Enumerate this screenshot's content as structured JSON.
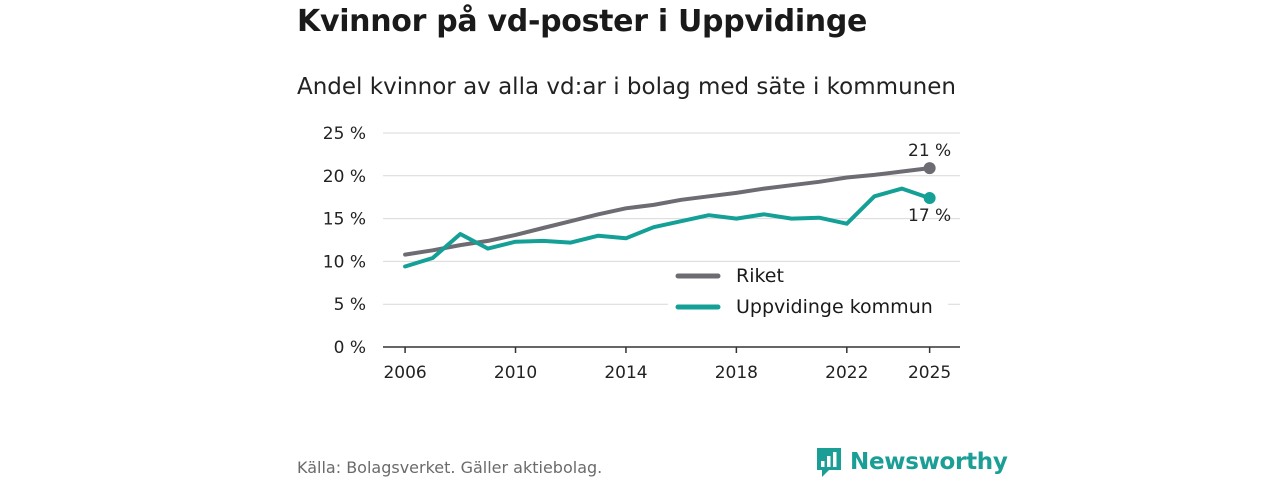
{
  "title": "Kvinnor på vd-poster i Uppvidinge",
  "subtitle": "Andel kvinnor av alla vd:ar i bolag med säte i kommunen",
  "source": "Källa: Bolagsverket. Gäller aktiebolag.",
  "brand": "Newsworthy",
  "colors": {
    "riket": "#6e6c73",
    "kommun": "#14a096",
    "grid": "#d9d9d9",
    "axis": "#333333"
  },
  "chart_data": {
    "type": "line",
    "title": "Kvinnor på vd-poster i Uppvidinge",
    "subtitle": "Andel kvinnor av alla vd:ar i bolag med säte i kommunen",
    "xlabel": "",
    "ylabel": "",
    "ylim": [
      0,
      25
    ],
    "yticks": [
      0,
      5,
      10,
      15,
      20,
      25
    ],
    "ytick_labels": [
      "0 %",
      "5 %",
      "10 %",
      "15 %",
      "20 %",
      "25 %"
    ],
    "xticks": [
      2006,
      2010,
      2014,
      2018,
      2022,
      2025
    ],
    "xtick_labels": [
      "2006",
      "2010",
      "2014",
      "2018",
      "2022",
      "2025"
    ],
    "x": [
      2006,
      2007,
      2008,
      2009,
      2010,
      2011,
      2012,
      2013,
      2014,
      2015,
      2016,
      2017,
      2018,
      2019,
      2020,
      2021,
      2022,
      2023,
      2024,
      2025
    ],
    "series": [
      {
        "name": "Riket",
        "color": "#6e6c73",
        "values": [
          10.8,
          11.3,
          11.9,
          12.4,
          13.1,
          13.9,
          14.7,
          15.5,
          16.2,
          16.6,
          17.2,
          17.6,
          18.0,
          18.5,
          18.9,
          19.3,
          19.8,
          20.1,
          20.5,
          20.9
        ],
        "end_label": "21 %"
      },
      {
        "name": "Uppvidinge kommun",
        "color": "#14a096",
        "values": [
          9.4,
          10.4,
          13.2,
          11.5,
          12.3,
          12.4,
          12.2,
          13.0,
          12.7,
          14.0,
          14.7,
          15.4,
          15.0,
          15.5,
          15.0,
          15.1,
          14.4,
          17.6,
          18.5,
          17.4
        ],
        "end_label": "17 %"
      }
    ],
    "legend": [
      "Riket",
      "Uppvidinge kommun"
    ],
    "legend_position": "bottom-right",
    "grid": true
  }
}
